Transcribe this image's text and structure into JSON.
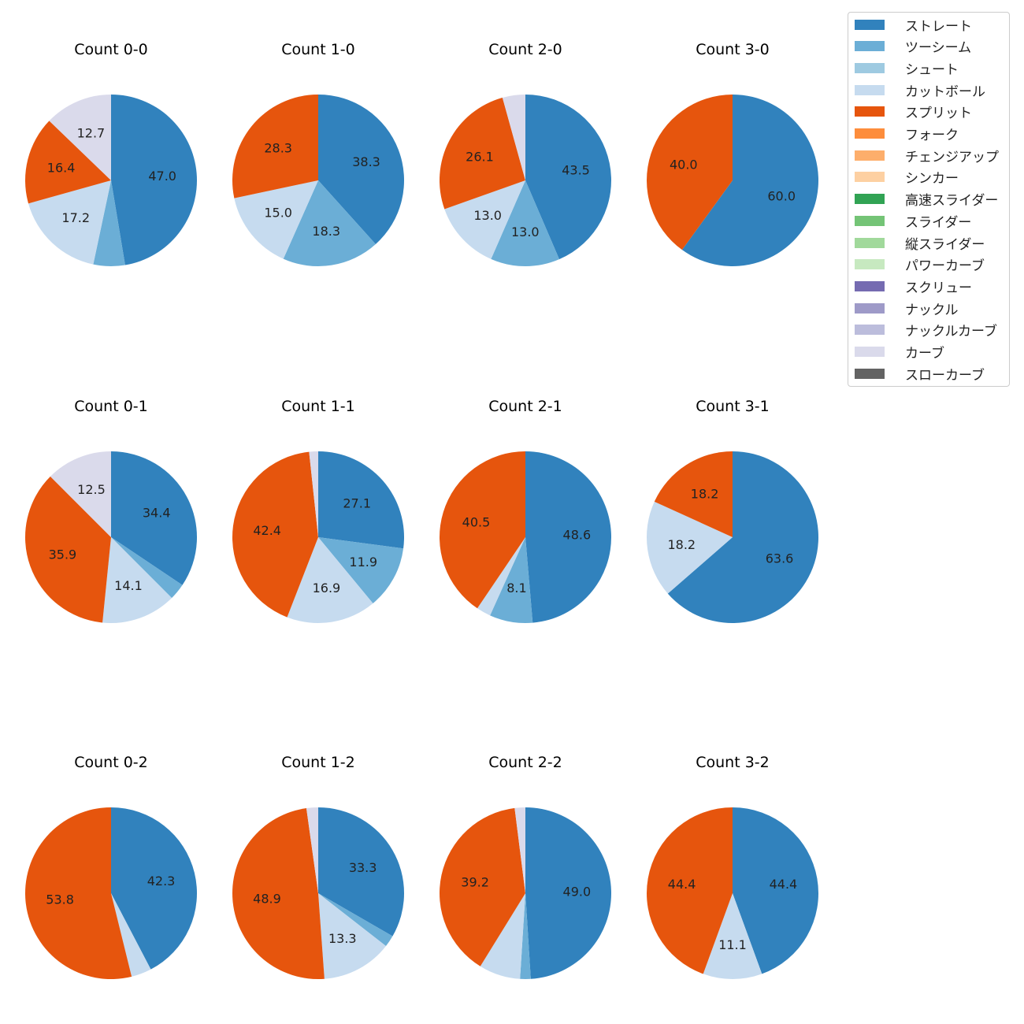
{
  "chart_data": {
    "type": "pie",
    "legend": [
      {
        "name": "ストレート",
        "color": "#3182bd"
      },
      {
        "name": "ツーシーム",
        "color": "#6baed6"
      },
      {
        "name": "シュート",
        "color": "#9ecae1"
      },
      {
        "name": "カットボール",
        "color": "#c6dbef"
      },
      {
        "name": "スプリット",
        "color": "#e6550d"
      },
      {
        "name": "フォーク",
        "color": "#fd8d3c"
      },
      {
        "name": "チェンジアップ",
        "color": "#fdae6b"
      },
      {
        "name": "シンカー",
        "color": "#fdd0a2"
      },
      {
        "name": "高速スライダー",
        "color": "#31a354"
      },
      {
        "name": "スライダー",
        "color": "#74c476"
      },
      {
        "name": "縦スライダー",
        "color": "#a1d99b"
      },
      {
        "name": "パワーカーブ",
        "color": "#c7e9c0"
      },
      {
        "name": "スクリュー",
        "color": "#756bb1"
      },
      {
        "name": "ナックル",
        "color": "#9e9ac8"
      },
      {
        "name": "ナックルカーブ",
        "color": "#bcbddc"
      },
      {
        "name": "カーブ",
        "color": "#dadaeb"
      },
      {
        "name": "スローカーブ",
        "color": "#636363"
      }
    ],
    "pies": [
      {
        "title": "Count 0-0",
        "slices": [
          {
            "pitch": "ストレート",
            "value": 47.0,
            "label": "47.0"
          },
          {
            "pitch": "ツーシーム",
            "value": 5.9,
            "label": ""
          },
          {
            "pitch": "カットボール",
            "value": 17.2,
            "label": "17.2"
          },
          {
            "pitch": "スプリット",
            "value": 16.4,
            "label": "16.4"
          },
          {
            "pitch": "カーブ",
            "value": 12.7,
            "label": "12.7"
          }
        ]
      },
      {
        "title": "Count 1-0",
        "slices": [
          {
            "pitch": "ストレート",
            "value": 38.3,
            "label": "38.3"
          },
          {
            "pitch": "ツーシーム",
            "value": 18.3,
            "label": "18.3"
          },
          {
            "pitch": "カットボール",
            "value": 15.0,
            "label": "15.0"
          },
          {
            "pitch": "スプリット",
            "value": 28.3,
            "label": "28.3"
          }
        ]
      },
      {
        "title": "Count 2-0",
        "slices": [
          {
            "pitch": "ストレート",
            "value": 43.5,
            "label": "43.5"
          },
          {
            "pitch": "ツーシーム",
            "value": 13.0,
            "label": "13.0"
          },
          {
            "pitch": "カットボール",
            "value": 13.0,
            "label": "13.0"
          },
          {
            "pitch": "スプリット",
            "value": 26.1,
            "label": "26.1"
          },
          {
            "pitch": "カーブ",
            "value": 4.3,
            "label": ""
          }
        ]
      },
      {
        "title": "Count 3-0",
        "slices": [
          {
            "pitch": "ストレート",
            "value": 60.0,
            "label": "60.0"
          },
          {
            "pitch": "スプリット",
            "value": 40.0,
            "label": "40.0"
          }
        ]
      },
      {
        "title": "Count 0-1",
        "slices": [
          {
            "pitch": "ストレート",
            "value": 34.4,
            "label": "34.4"
          },
          {
            "pitch": "ツーシーム",
            "value": 3.1,
            "label": ""
          },
          {
            "pitch": "カットボール",
            "value": 14.1,
            "label": "14.1"
          },
          {
            "pitch": "スプリット",
            "value": 35.9,
            "label": "35.9"
          },
          {
            "pitch": "カーブ",
            "value": 12.5,
            "label": "12.5"
          }
        ]
      },
      {
        "title": "Count 1-1",
        "slices": [
          {
            "pitch": "ストレート",
            "value": 27.1,
            "label": "27.1"
          },
          {
            "pitch": "ツーシーム",
            "value": 11.9,
            "label": "11.9"
          },
          {
            "pitch": "カットボール",
            "value": 16.9,
            "label": "16.9"
          },
          {
            "pitch": "スプリット",
            "value": 42.4,
            "label": "42.4"
          },
          {
            "pitch": "カーブ",
            "value": 1.7,
            "label": ""
          }
        ]
      },
      {
        "title": "Count 2-1",
        "slices": [
          {
            "pitch": "ストレート",
            "value": 48.6,
            "label": "48.6"
          },
          {
            "pitch": "ツーシーム",
            "value": 8.1,
            "label": "8.1"
          },
          {
            "pitch": "カットボール",
            "value": 2.7,
            "label": ""
          },
          {
            "pitch": "スプリット",
            "value": 40.5,
            "label": "40.5"
          }
        ]
      },
      {
        "title": "Count 3-1",
        "slices": [
          {
            "pitch": "ストレート",
            "value": 63.6,
            "label": "63.6"
          },
          {
            "pitch": "カットボール",
            "value": 18.2,
            "label": "18.2"
          },
          {
            "pitch": "スプリット",
            "value": 18.2,
            "label": "18.2"
          }
        ]
      },
      {
        "title": "Count 0-2",
        "slices": [
          {
            "pitch": "ストレート",
            "value": 42.3,
            "label": "42.3"
          },
          {
            "pitch": "カットボール",
            "value": 3.8,
            "label": ""
          },
          {
            "pitch": "スプリット",
            "value": 53.8,
            "label": "53.8"
          }
        ]
      },
      {
        "title": "Count 1-2",
        "slices": [
          {
            "pitch": "ストレート",
            "value": 33.3,
            "label": "33.3"
          },
          {
            "pitch": "ツーシーム",
            "value": 2.2,
            "label": ""
          },
          {
            "pitch": "カットボール",
            "value": 13.3,
            "label": "13.3"
          },
          {
            "pitch": "スプリット",
            "value": 48.9,
            "label": "48.9"
          },
          {
            "pitch": "カーブ",
            "value": 2.2,
            "label": ""
          }
        ]
      },
      {
        "title": "Count 2-2",
        "slices": [
          {
            "pitch": "ストレート",
            "value": 49.0,
            "label": "49.0"
          },
          {
            "pitch": "ツーシーム",
            "value": 2.0,
            "label": ""
          },
          {
            "pitch": "カットボール",
            "value": 7.8,
            "label": ""
          },
          {
            "pitch": "スプリット",
            "value": 39.2,
            "label": "39.2"
          },
          {
            "pitch": "カーブ",
            "value": 2.0,
            "label": ""
          }
        ]
      },
      {
        "title": "Count 3-2",
        "slices": [
          {
            "pitch": "ストレート",
            "value": 44.4,
            "label": "44.4"
          },
          {
            "pitch": "カットボール",
            "value": 11.1,
            "label": "11.1"
          },
          {
            "pitch": "スプリット",
            "value": 44.4,
            "label": "44.4"
          }
        ]
      }
    ]
  }
}
